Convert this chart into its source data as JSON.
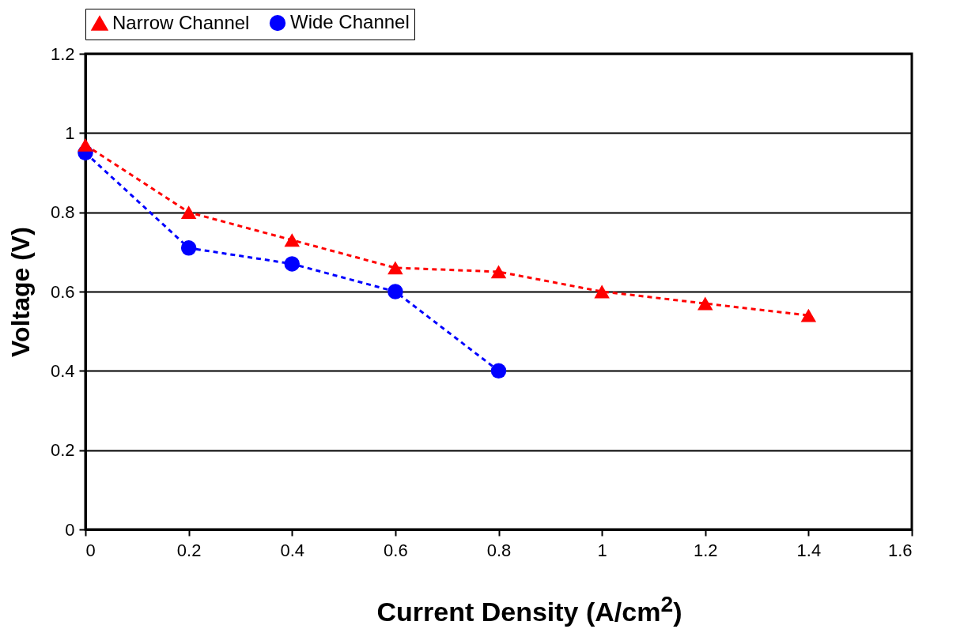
{
  "chart_data": {
    "type": "line",
    "xlabel": "Current Density (A/cm$^{2}$)",
    "ylabel": "Voltage (V)",
    "xlim": [
      0,
      1.6
    ],
    "xticks": [
      0,
      0.2,
      0.4,
      0.6,
      0.8,
      1,
      1.2,
      1.4,
      1.6
    ],
    "ylim": [
      0,
      1.2
    ],
    "yticks": [
      0,
      0.2,
      0.4,
      0.6,
      0.8,
      1,
      1.2
    ],
    "grid": "y",
    "legend": "top",
    "line_style": "dashed",
    "series": [
      {
        "name": "Narrow Channel",
        "color": "#ff0000",
        "marker": "triangle",
        "x": [
          0,
          0.2,
          0.4,
          0.6,
          0.8,
          1,
          1.2,
          1.4
        ],
        "values": [
          0.97,
          0.8,
          0.73,
          0.66,
          0.65,
          0.6,
          0.57,
          0.54
        ]
      },
      {
        "name": "Wide Channel",
        "color": "#0000ff",
        "marker": "circle",
        "x": [
          0,
          0.2,
          0.4,
          0.6,
          0.8
        ],
        "values": [
          0.95,
          0.71,
          0.67,
          0.6,
          0.4
        ]
      }
    ]
  }
}
